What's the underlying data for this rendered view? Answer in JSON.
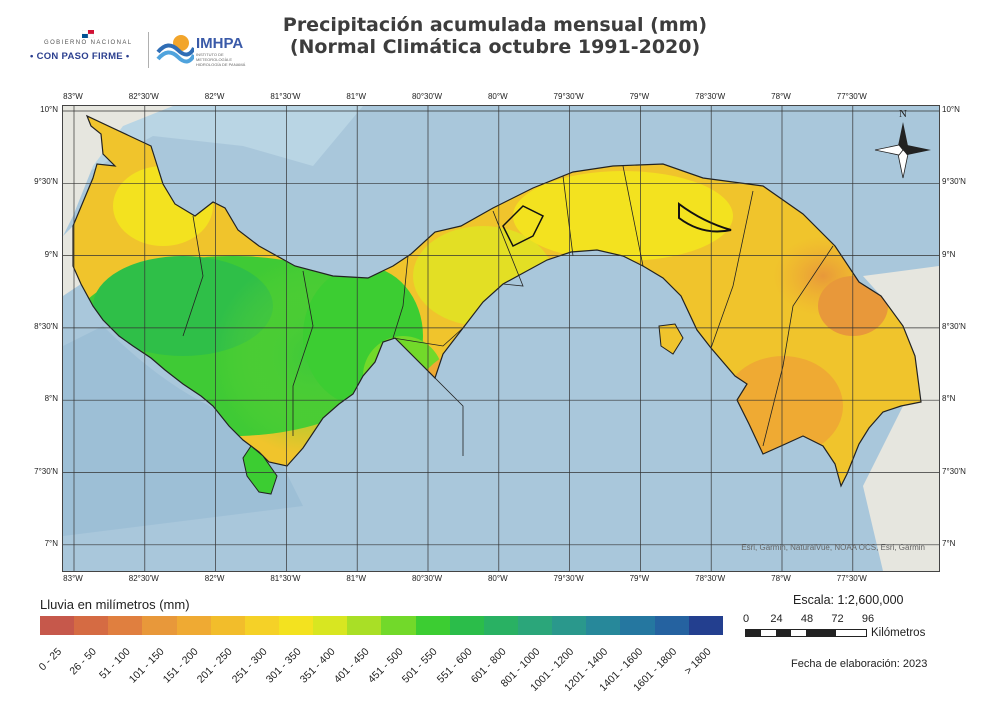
{
  "title": {
    "line1": "Precipitación acumulada mensual (mm)",
    "line2": "(Normal Climática octubre 1991-2020)"
  },
  "logos": {
    "gov_top": "GOBIERNO NACIONAL",
    "gov_main": "• CON PASO FIRME •",
    "imhpa_name": "IMHPA",
    "imhpa_sub": "INSTITUTO DE METEOROLOGÍA E HIDROLOGÍA DE PANAMÁ"
  },
  "map": {
    "lon_labels": [
      "83°W",
      "82°30'W",
      "82°W",
      "81°30'W",
      "81°W",
      "80°30'W",
      "80°W",
      "79°30'W",
      "79°W",
      "78°30'W",
      "78°W",
      "77°30'W"
    ],
    "lat_labels": [
      "10°N",
      "9°30'N",
      "9°N",
      "8°30'N",
      "8°N",
      "7°30'N",
      "7°N"
    ],
    "north_label": "N",
    "attribution": "Esri, Garmin, NaturalVue, NOAA OCS, Esri, Garmin",
    "colors": {
      "ocean": "#aac8dc",
      "neighbor": "#e6e6df",
      "border": "#222222"
    }
  },
  "legend": {
    "title": "Lluvia en milímetros (mm)",
    "classes": [
      {
        "label": "0 - 25",
        "color": "#c6584b"
      },
      {
        "label": "26 - 50",
        "color": "#d56b43"
      },
      {
        "label": "51 - 100",
        "color": "#e07f3f"
      },
      {
        "label": "101 - 150",
        "color": "#e8983a"
      },
      {
        "label": "151 - 200",
        "color": "#efaa33"
      },
      {
        "label": "201 - 250",
        "color": "#f2bd2b"
      },
      {
        "label": "251 - 300",
        "color": "#f5d127"
      },
      {
        "label": "301 - 350",
        "color": "#f3e21f"
      },
      {
        "label": "351 - 400",
        "color": "#d8e621"
      },
      {
        "label": "401 - 450",
        "color": "#a9df26"
      },
      {
        "label": "451 - 500",
        "color": "#72d92a"
      },
      {
        "label": "501 - 550",
        "color": "#3ccd32"
      },
      {
        "label": "551 - 600",
        "color": "#2bbd4a"
      },
      {
        "label": "601 - 800",
        "color": "#29b163"
      },
      {
        "label": "801 - 1000",
        "color": "#2ba67a"
      },
      {
        "label": "1001 - 1200",
        "color": "#2a988c"
      },
      {
        "label": "1201 - 1400",
        "color": "#27889a"
      },
      {
        "label": "1401 - 1600",
        "color": "#2577a0"
      },
      {
        "label": "1601 - 1800",
        "color": "#2562a0"
      },
      {
        "label": "> 1800",
        "color": "#233f8f"
      }
    ]
  },
  "scale": {
    "text": "Escala: 1:2,600,000",
    "ticks": [
      "0",
      "24",
      "48",
      "72",
      "96"
    ],
    "unit": "Kilómetros"
  },
  "fecha": "Fecha de elaboración: 2023"
}
